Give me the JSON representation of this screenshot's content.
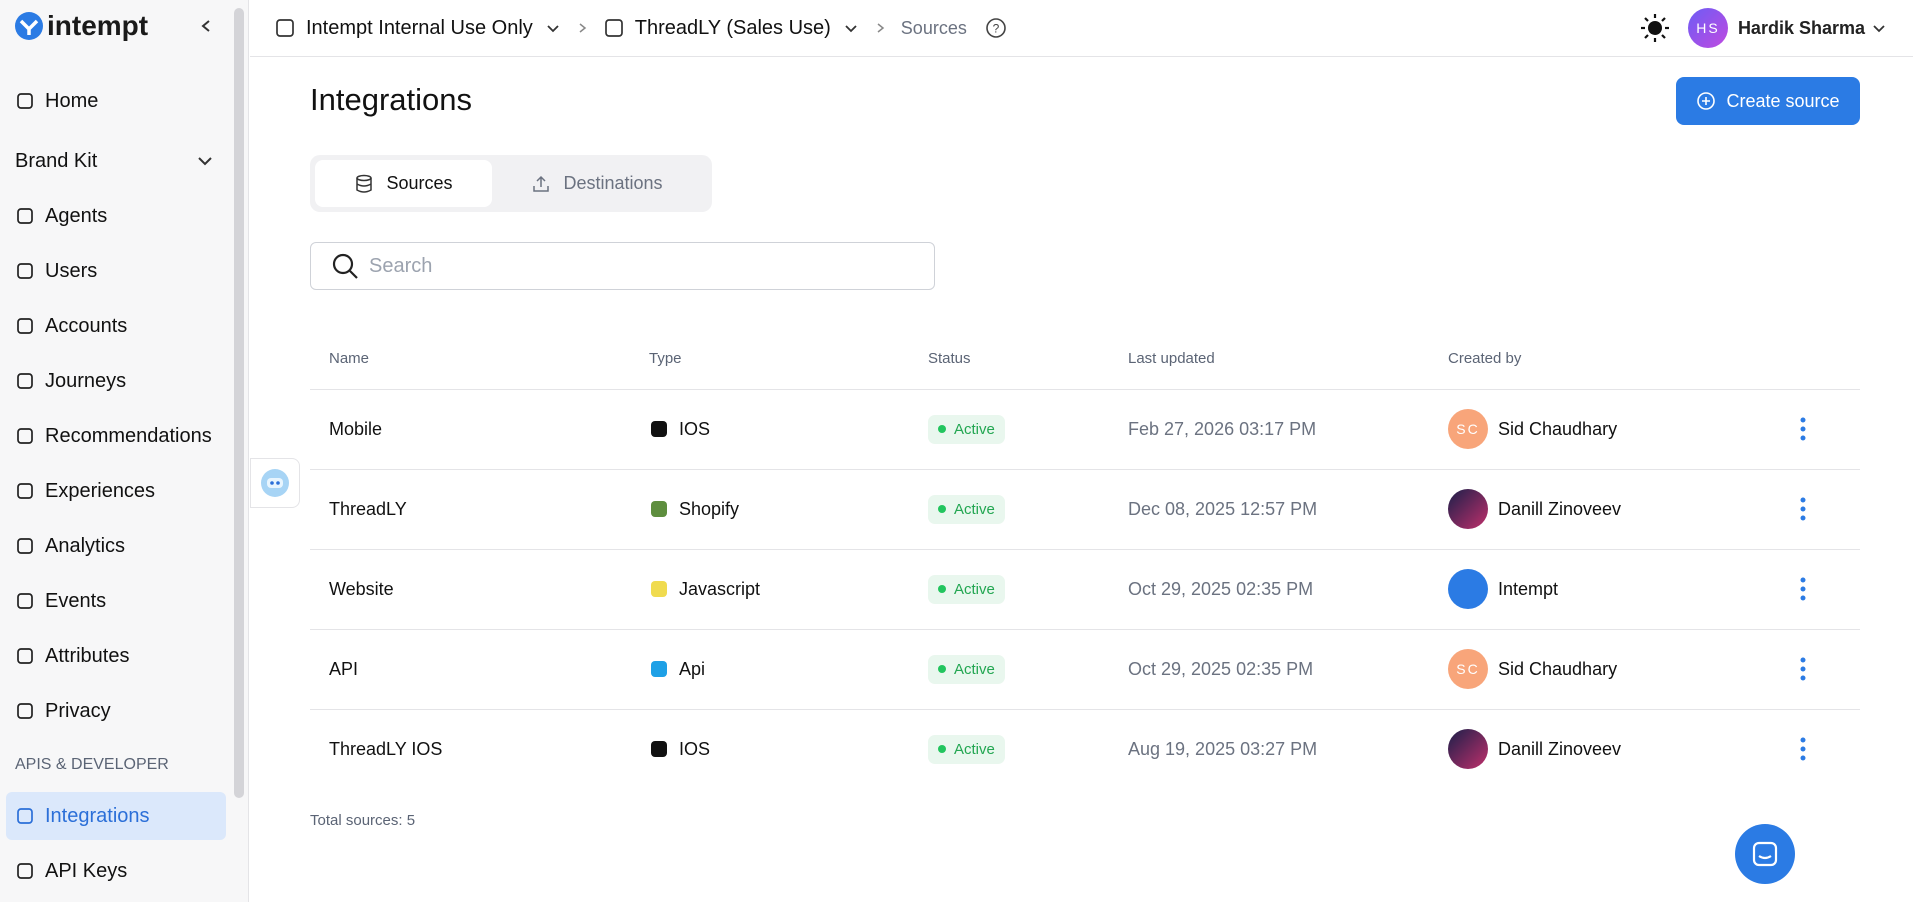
{
  "sidebar": {
    "brand": "intempt",
    "nav": [
      "Home",
      "Brand Kit",
      "Agents",
      "Users",
      "Accounts",
      "Journeys",
      "Recommendations",
      "Experiences",
      "Analytics",
      "Events",
      "Attributes",
      "Privacy"
    ],
    "section": "APIS & DEVELOPER",
    "dev_nav": [
      "Integrations",
      "API Keys"
    ]
  },
  "header": {
    "breadcrumbs": [
      "Intempt Internal Use Only",
      "ThreadLY (Sales Use)",
      "Sources"
    ],
    "user_initials": "HS",
    "user_name": "Hardik Sharma"
  },
  "page": {
    "title": "Integrations",
    "create_button": "Create source",
    "tabs": [
      "Sources",
      "Destinations"
    ],
    "search_placeholder": "Search"
  },
  "table": {
    "columns": [
      "Name",
      "Type",
      "Status",
      "Last updated",
      "Created by"
    ],
    "rows": [
      {
        "name": "Mobile",
        "type": "IOS",
        "status": "Active",
        "updated": "Feb 27, 2026 03:17 PM",
        "creator": "Sid Chaudhary",
        "initials": "SC"
      },
      {
        "name": "ThreadLY",
        "type": "Shopify",
        "status": "Active",
        "updated": "Dec 08, 2025 12:57 PM",
        "creator": "Danill Zinoveev"
      },
      {
        "name": "Website",
        "type": "Javascript",
        "status": "Active",
        "updated": "Oct 29, 2025 02:35 PM",
        "creator": "Intempt"
      },
      {
        "name": "API",
        "type": "Api",
        "status": "Active",
        "updated": "Oct 29, 2025 02:35 PM",
        "creator": "Sid Chaudhary",
        "initials": "SC"
      },
      {
        "name": "ThreadLY IOS",
        "type": "IOS",
        "status": "Active",
        "updated": "Aug 19, 2025 03:27 PM",
        "creator": "Danill Zinoveev"
      }
    ],
    "footer": "Total sources: 5"
  }
}
